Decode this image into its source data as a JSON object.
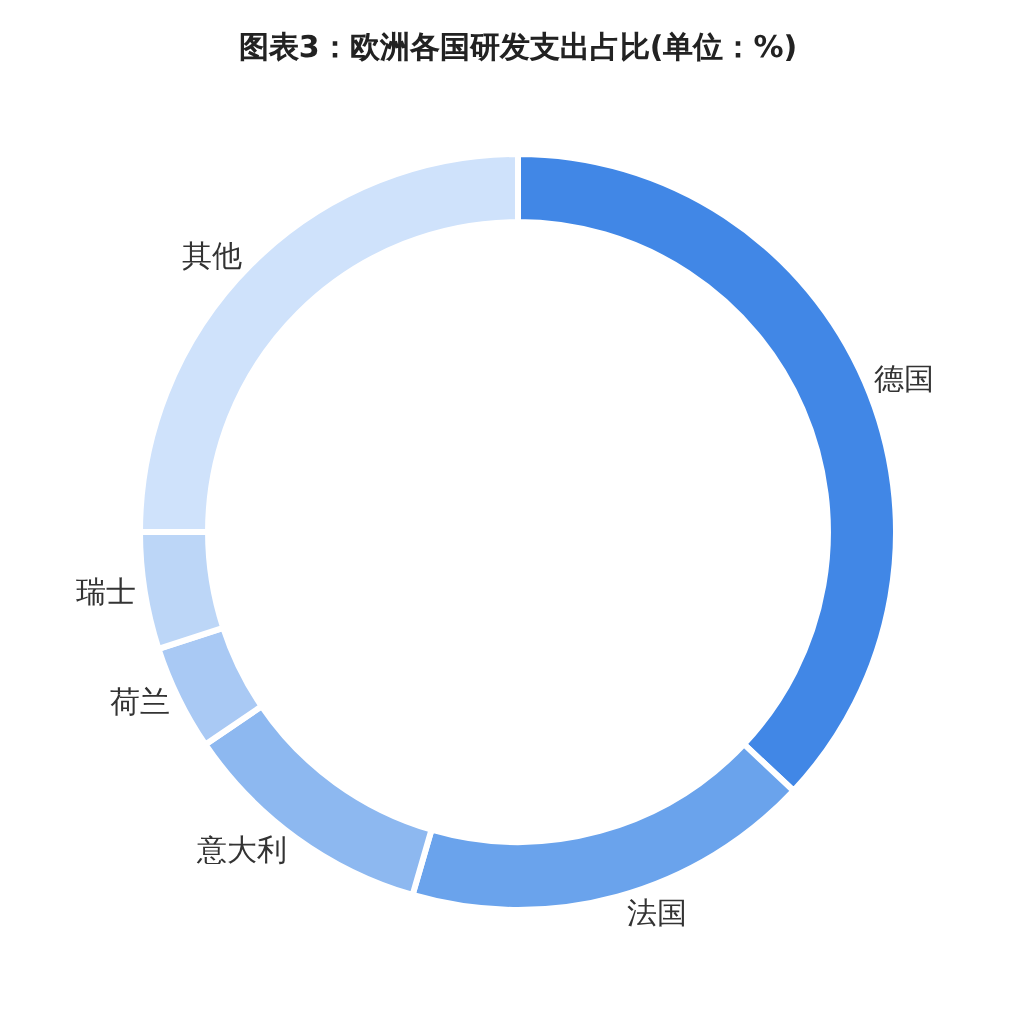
{
  "chart_data": {
    "type": "donut",
    "title": "图表3：欧洲各国研发支出占比(单位：%)",
    "categories": [
      "德国",
      "法国",
      "意大利",
      "荷兰",
      "瑞士",
      "其他"
    ],
    "values": [
      37,
      17.5,
      11,
      4.5,
      5,
      25
    ],
    "colors": [
      "#4187e6",
      "#6aa3ec",
      "#8db8f0",
      "#a9c9f4",
      "#bcd6f7",
      "#cfe2fb"
    ],
    "legend": false
  }
}
